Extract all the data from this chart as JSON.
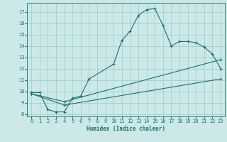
{
  "xlabel": "Humidex (Indice chaleur)",
  "xlim": [
    -0.5,
    23.5
  ],
  "ylim": [
    7.8,
    17.8
  ],
  "yticks": [
    8,
    9,
    10,
    11,
    12,
    13,
    14,
    15,
    16,
    17
  ],
  "xticks": [
    0,
    1,
    2,
    3,
    4,
    5,
    6,
    7,
    8,
    9,
    10,
    11,
    12,
    13,
    14,
    15,
    16,
    17,
    18,
    19,
    20,
    21,
    22,
    23
  ],
  "bg_color": "#cce8e8",
  "line_color": "#1a7070",
  "grid_color": "#99cccc",
  "line1_x": [
    0,
    1,
    2,
    3,
    4,
    5,
    6,
    7,
    10,
    11,
    12,
    13,
    14,
    15,
    16,
    17,
    18,
    19,
    20,
    21,
    22,
    23
  ],
  "line1_y": [
    9.9,
    9.9,
    8.4,
    8.2,
    8.2,
    9.4,
    9.6,
    11.1,
    12.4,
    14.5,
    15.3,
    16.7,
    17.2,
    17.3,
    15.8,
    14.0,
    14.4,
    14.4,
    14.3,
    13.9,
    13.3,
    12.0
  ],
  "line2_x": [
    0,
    4,
    23
  ],
  "line2_y": [
    9.8,
    9.1,
    12.8
  ],
  "line3_x": [
    0,
    4,
    23
  ],
  "line3_y": [
    9.8,
    8.8,
    11.1
  ],
  "figsize": [
    3.2,
    2.0
  ],
  "dpi": 100
}
